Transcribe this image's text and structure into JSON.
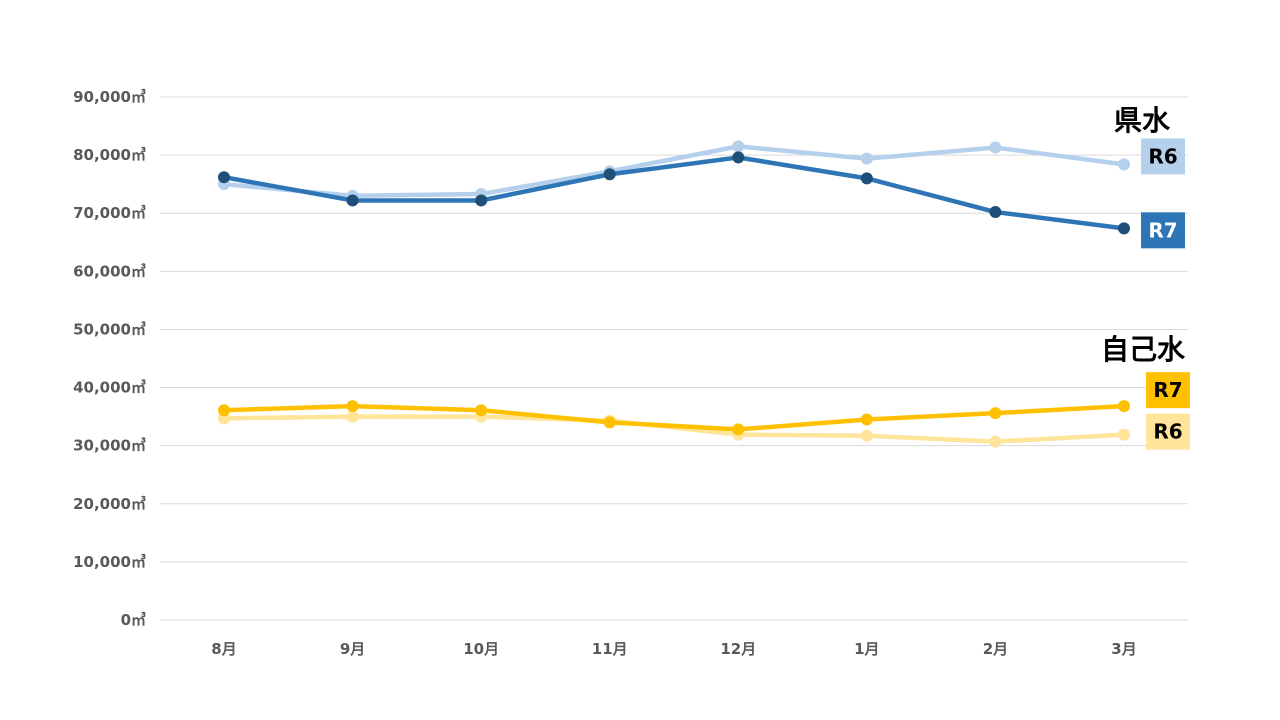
{
  "chart_data": {
    "type": "line",
    "categories": [
      "8月",
      "9月",
      "10月",
      "11月",
      "12月",
      "1月",
      "2月",
      "3月"
    ],
    "ylim": [
      0,
      90000
    ],
    "y_ticks": [
      0,
      10000,
      20000,
      30000,
      40000,
      50000,
      60000,
      70000,
      80000,
      90000
    ],
    "y_tick_labels": [
      "0㎥",
      "10,000㎥",
      "20,000㎥",
      "30,000㎥",
      "40,000㎥",
      "50,000㎥",
      "60,000㎥",
      "70,000㎥",
      "80,000㎥",
      "90,000㎥"
    ],
    "grid": true,
    "groups": [
      {
        "key": "kensui",
        "label": "県水"
      },
      {
        "key": "jikosui",
        "label": "自己水"
      }
    ],
    "series": [
      {
        "group": "kensui",
        "name": "R6",
        "color": "#b4d0ec",
        "text_color": "#000000",
        "values": [
          75000,
          73000,
          73300,
          77200,
          81500,
          79400,
          81300,
          78400
        ]
      },
      {
        "group": "kensui",
        "name": "R7",
        "color": "#2e75b6",
        "marker_color": "#1f4e79",
        "text_color": "#ffffff",
        "values": [
          76200,
          72200,
          72200,
          76700,
          79600,
          76000,
          70200,
          67400
        ]
      },
      {
        "group": "jikosui",
        "name": "R6",
        "color": "#ffe49a",
        "text_color": "#000000",
        "values": [
          34700,
          35000,
          35000,
          34300,
          31900,
          31700,
          30700,
          31900
        ]
      },
      {
        "group": "jikosui",
        "name": "R7",
        "color": "#ffc000",
        "text_color": "#000000",
        "values": [
          36100,
          36800,
          36100,
          34000,
          32800,
          34500,
          35600,
          36800
        ]
      }
    ]
  }
}
